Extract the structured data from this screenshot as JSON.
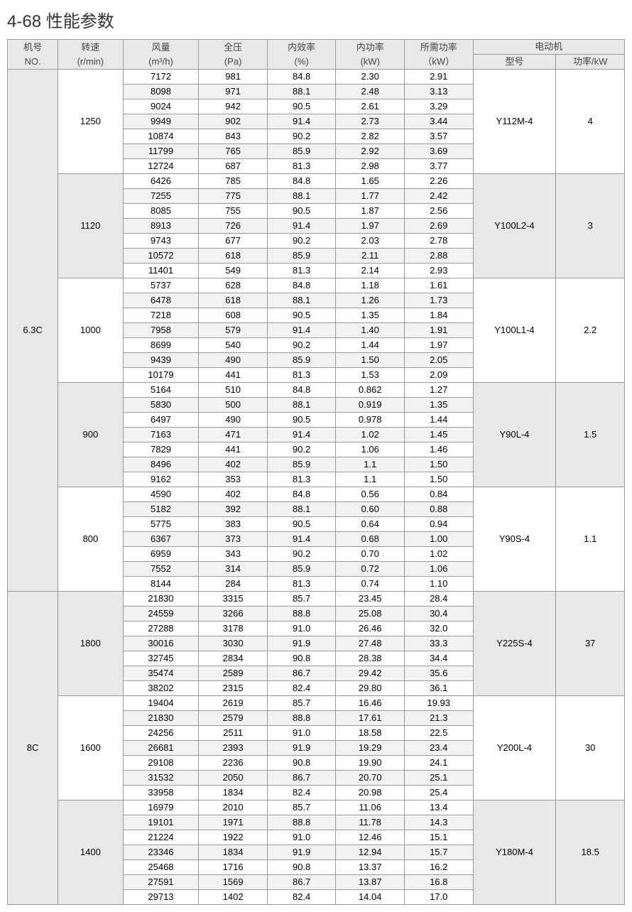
{
  "title": "4-68 性能参数",
  "headers": {
    "no": [
      "机号",
      "NO."
    ],
    "speed": [
      "转速",
      "(r/min)"
    ],
    "vol": [
      "风量",
      "(m³/h)"
    ],
    "press": [
      "全压",
      "(Pa)"
    ],
    "eff": [
      "内效率",
      "(%)"
    ],
    "ipow": [
      "内功率",
      "(kW)"
    ],
    "rpow": [
      "所需功率",
      "（kW）"
    ],
    "motor": "电动机",
    "model": "型号",
    "mpow": "功率/kW"
  },
  "styling": {
    "border_color": "#999999",
    "header_bg": "#e8e8e8",
    "alt_row_bg": "#f2f2f2",
    "normal_row_bg": "#ffffff",
    "font_size": 13,
    "title_font_size": 24,
    "title_color": "#333333",
    "header_text_color": "#444444"
  },
  "blocks": [
    {
      "no": "6.3C",
      "groups": [
        {
          "speed": "1250",
          "model": "Y112M-4",
          "mpow": "4",
          "alt_bg": false,
          "rows": [
            [
              "7172",
              "981",
              "84.8",
              "2.30",
              "2.91"
            ],
            [
              "8098",
              "971",
              "88.1",
              "2.48",
              "3.13"
            ],
            [
              "9024",
              "942",
              "90.5",
              "2.61",
              "3.29"
            ],
            [
              "9949",
              "902",
              "91.4",
              "2.73",
              "3.44"
            ],
            [
              "10874",
              "843",
              "90.2",
              "2.82",
              "3.57"
            ],
            [
              "11799",
              "765",
              "85.9",
              "2.92",
              "3.69"
            ],
            [
              "12724",
              "687",
              "81.3",
              "2.98",
              "3.77"
            ]
          ]
        },
        {
          "speed": "1120",
          "model": "Y100L2-4",
          "mpow": "3",
          "alt_bg": true,
          "rows": [
            [
              "6426",
              "785",
              "84.8",
              "1.65",
              "2.26"
            ],
            [
              "7255",
              "775",
              "88.1",
              "1.77",
              "2.42"
            ],
            [
              "8085",
              "755",
              "90.5",
              "1.87",
              "2.56"
            ],
            [
              "8913",
              "726",
              "91.4",
              "1.97",
              "2.69"
            ],
            [
              "9743",
              "677",
              "90.2",
              "2.03",
              "2.78"
            ],
            [
              "10572",
              "618",
              "85.9",
              "2.11",
              "2.88"
            ],
            [
              "11401",
              "549",
              "81.3",
              "2.14",
              "2.93"
            ]
          ]
        },
        {
          "speed": "1000",
          "model": "Y100L1-4",
          "mpow": "2.2",
          "alt_bg": false,
          "rows": [
            [
              "5737",
              "628",
              "84.8",
              "1.18",
              "1.61"
            ],
            [
              "6478",
              "618",
              "88.1",
              "1.26",
              "1.73"
            ],
            [
              "7218",
              "608",
              "90.5",
              "1.35",
              "1.84"
            ],
            [
              "7958",
              "579",
              "91.4",
              "1.40",
              "1.91"
            ],
            [
              "8699",
              "540",
              "90.2",
              "1.44",
              "1.97"
            ],
            [
              "9439",
              "490",
              "85.9",
              "1.50",
              "2.05"
            ],
            [
              "10179",
              "441",
              "81.3",
              "1.53",
              "2.09"
            ]
          ]
        },
        {
          "speed": "900",
          "model": "Y90L-4",
          "mpow": "1.5",
          "alt_bg": true,
          "rows": [
            [
              "5164",
              "510",
              "84.8",
              "0.862",
              "1.27"
            ],
            [
              "5830",
              "500",
              "88.1",
              "0.919",
              "1.35"
            ],
            [
              "6497",
              "490",
              "90.5",
              "0.978",
              "1.44"
            ],
            [
              "7163",
              "471",
              "91.4",
              "1.02",
              "1.45"
            ],
            [
              "7829",
              "441",
              "90.2",
              "1.06",
              "1.46"
            ],
            [
              "8496",
              "402",
              "85.9",
              "1.1",
              "1.50"
            ],
            [
              "9162",
              "353",
              "81.3",
              "1.1",
              "1.50"
            ]
          ]
        },
        {
          "speed": "800",
          "model": "Y90S-4",
          "mpow": "1.1",
          "alt_bg": false,
          "rows": [
            [
              "4590",
              "402",
              "84.8",
              "0.56",
              "0.84"
            ],
            [
              "5182",
              "392",
              "88.1",
              "0.60",
              "0.88"
            ],
            [
              "5775",
              "383",
              "90.5",
              "0.64",
              "0.94"
            ],
            [
              "6367",
              "373",
              "91.4",
              "0.68",
              "1.00"
            ],
            [
              "6959",
              "343",
              "90.2",
              "0.70",
              "1.02"
            ],
            [
              "7552",
              "314",
              "85.9",
              "0.72",
              "1.06"
            ],
            [
              "8144",
              "284",
              "81.3",
              "0.74",
              "1.10"
            ]
          ]
        }
      ]
    },
    {
      "no": "8C",
      "groups": [
        {
          "speed": "1800",
          "model": "Y225S-4",
          "mpow": "37",
          "alt_bg": true,
          "rows": [
            [
              "21830",
              "3315",
              "85.7",
              "23.45",
              "28.4"
            ],
            [
              "24559",
              "3266",
              "88.8",
              "25.08",
              "30.4"
            ],
            [
              "27288",
              "3178",
              "91.0",
              "26.46",
              "32.0"
            ],
            [
              "30016",
              "3030",
              "91.9",
              "27.48",
              "33.3"
            ],
            [
              "32745",
              "2834",
              "90.8",
              "28.38",
              "34.4"
            ],
            [
              "35474",
              "2589",
              "86.7",
              "29.42",
              "35.6"
            ],
            [
              "38202",
              "2315",
              "82.4",
              "29.80",
              "36.1"
            ]
          ]
        },
        {
          "speed": "1600",
          "model": "Y200L-4",
          "mpow": "30",
          "alt_bg": false,
          "rows": [
            [
              "19404",
              "2619",
              "85.7",
              "16.46",
              "19.93"
            ],
            [
              "21830",
              "2579",
              "88.8",
              "17.61",
              "21.3"
            ],
            [
              "24256",
              "2511",
              "91.0",
              "18.58",
              "22.5"
            ],
            [
              "26681",
              "2393",
              "91.9",
              "19.29",
              "23.4"
            ],
            [
              "29108",
              "2236",
              "90.8",
              "19.90",
              "24.1"
            ],
            [
              "31532",
              "2050",
              "86.7",
              "20.70",
              "25.1"
            ],
            [
              "33958",
              "1834",
              "82.4",
              "20.98",
              "25.4"
            ]
          ]
        },
        {
          "speed": "1400",
          "model": "Y180M-4",
          "mpow": "18.5",
          "alt_bg": true,
          "rows": [
            [
              "16979",
              "2010",
              "85.7",
              "11.06",
              "13.4"
            ],
            [
              "19101",
              "1971",
              "88.8",
              "11.78",
              "14.3"
            ],
            [
              "21224",
              "1922",
              "91.0",
              "12.46",
              "15.1"
            ],
            [
              "23346",
              "1834",
              "91.9",
              "12.94",
              "15.7"
            ],
            [
              "25468",
              "1716",
              "90.8",
              "13.37",
              "16.2"
            ],
            [
              "27591",
              "1569",
              "86.7",
              "13.87",
              "16.8"
            ],
            [
              "29713",
              "1402",
              "82.4",
              "14.04",
              "17.0"
            ]
          ]
        }
      ]
    }
  ]
}
